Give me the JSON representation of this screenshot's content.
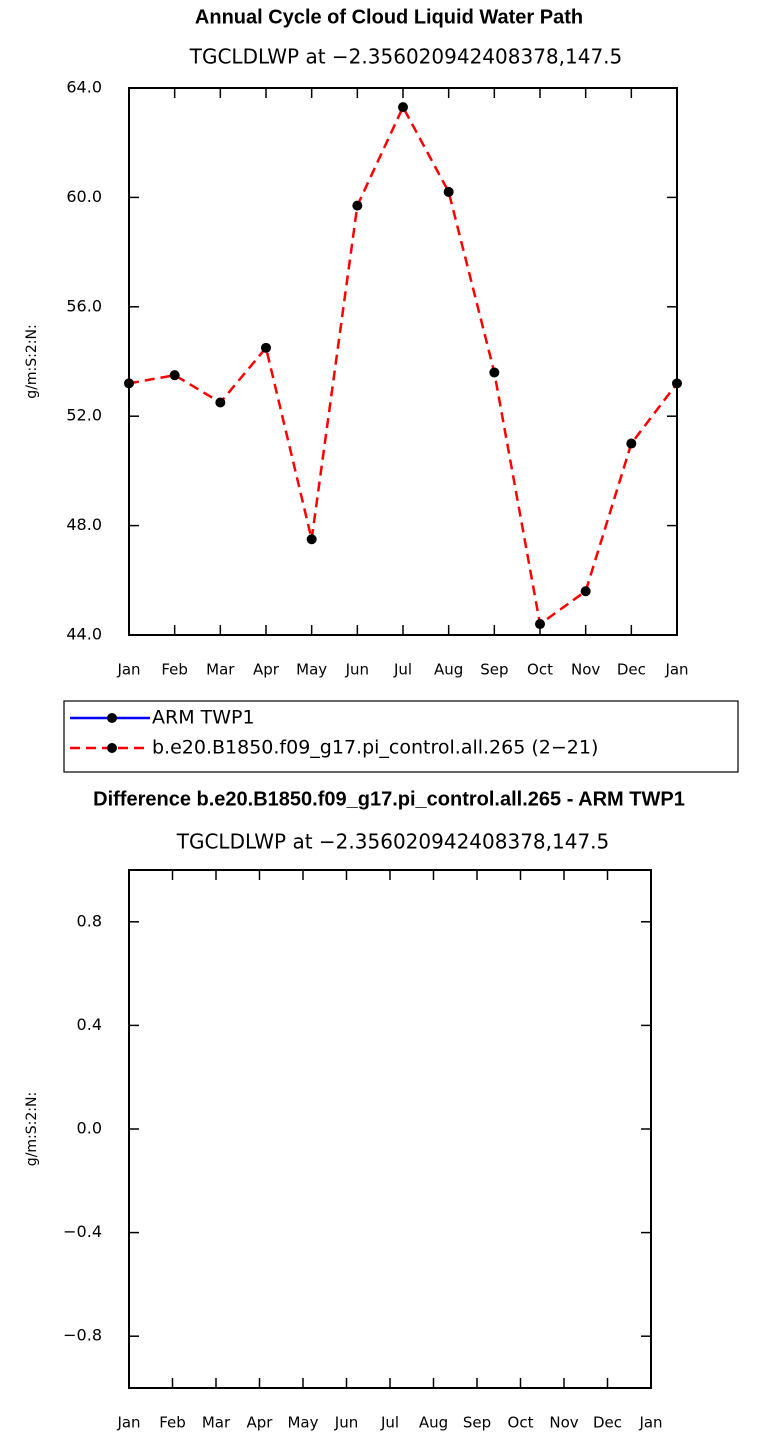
{
  "chart_data": [
    {
      "type": "line",
      "title": "Annual Cycle of Cloud Liquid Water Path",
      "subtitle": "TGCLDLWP at −2.356020942408378,147.5",
      "ylabel": "g/m:S:2:N:",
      "categories": [
        "Jan",
        "Feb",
        "Mar",
        "Apr",
        "May",
        "Jun",
        "Jul",
        "Aug",
        "Sep",
        "Oct",
        "Nov",
        "Dec",
        "Jan"
      ],
      "series": [
        {
          "name": "ARM TWP1",
          "color": "#0000ff",
          "values": [
            null,
            null,
            null,
            null,
            null,
            null,
            null,
            null,
            null,
            null,
            null,
            null,
            null
          ]
        },
        {
          "name": "b.e20.B1850.f09_g17.pi_control.all.265 (2−21)",
          "color": "#ff0000",
          "values": [
            53.2,
            53.5,
            52.5,
            54.5,
            47.5,
            59.7,
            63.3,
            60.2,
            53.6,
            44.4,
            45.6,
            51.0,
            53.2
          ]
        }
      ],
      "ylim": [
        44,
        64
      ],
      "yticks": [
        {
          "value": 44,
          "label": "44.0"
        },
        {
          "value": 48,
          "label": "48.0"
        },
        {
          "value": 52,
          "label": "52.0"
        },
        {
          "value": 56,
          "label": "56.0"
        },
        {
          "value": 60,
          "label": "60.0"
        },
        {
          "value": 64,
          "label": "64.0"
        }
      ]
    },
    {
      "type": "line",
      "title": "Difference b.e20.B1850.f09_g17.pi_control.all.265 - ARM TWP1",
      "subtitle": "TGCLDLWP at −2.356020942408378,147.5",
      "ylabel": "g/m:S:2:N:",
      "categories": [
        "Jan",
        "Feb",
        "Mar",
        "Apr",
        "May",
        "Jun",
        "Jul",
        "Aug",
        "Sep",
        "Oct",
        "Nov",
        "Dec",
        "Jan"
      ],
      "series": [],
      "ylim": [
        -1,
        1
      ],
      "yticks": [
        {
          "value": -0.8,
          "label": "−0.8"
        },
        {
          "value": -0.4,
          "label": "−0.4"
        },
        {
          "value": 0,
          "label": "0.0"
        },
        0.4,
        0.8
      ]
    }
  ]
}
